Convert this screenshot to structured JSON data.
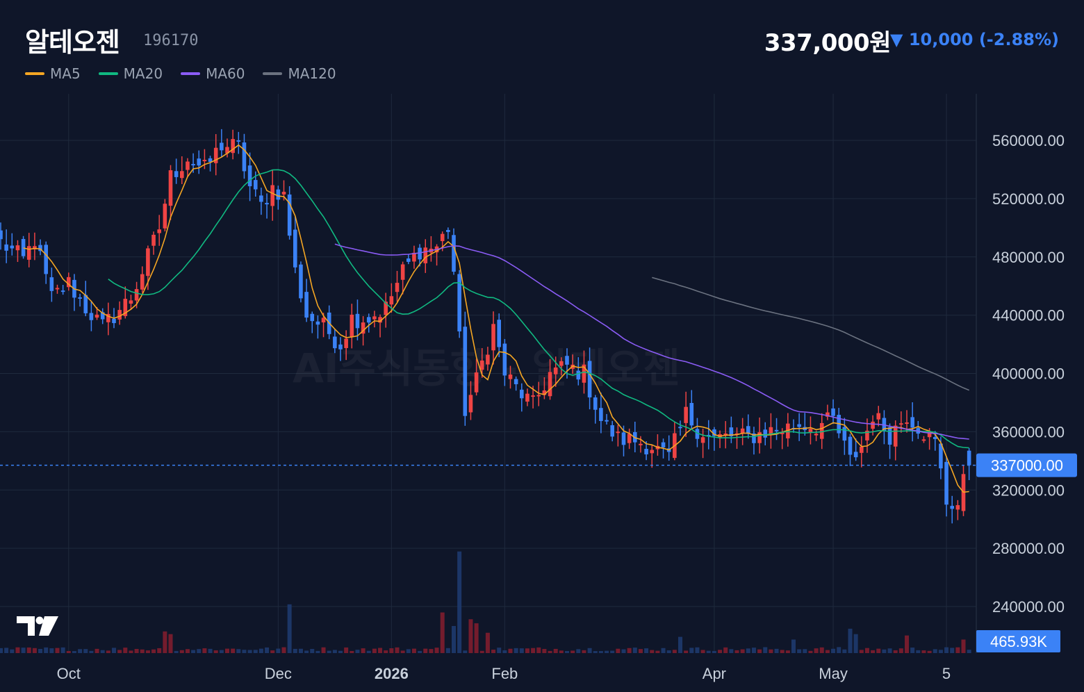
{
  "header": {
    "title": "알테오젠",
    "code": "196170",
    "price": "337,000원",
    "change": "▼ 10,000 (-2.88%)"
  },
  "colors": {
    "background": "#0f1629",
    "grid": "#1f2a3d",
    "up": "#ef4444",
    "down": "#3b82f6",
    "ma5": "#f5a623",
    "ma20": "#10b981",
    "ma60": "#8b5cf6",
    "ma120": "#6b7280",
    "price_tag": "#3b82f6"
  },
  "watermark": "AI주식동향 - 알테오젠",
  "last_price_tag": "337000.00",
  "volume_tag": "465.93K",
  "chart_data": {
    "type": "candlestick",
    "ma_legend": [
      {
        "name": "MA5",
        "color": "#f5a623"
      },
      {
        "name": "MA20",
        "color": "#10b981"
      },
      {
        "name": "MA60",
        "color": "#8b5cf6"
      },
      {
        "name": "MA120",
        "color": "#6b7280"
      }
    ],
    "y_ticks": [
      "560000.00",
      "520000.00",
      "480000.00",
      "440000.00",
      "400000.00",
      "360000.00",
      "320000.00",
      "280000.00",
      "240000.00"
    ],
    "y_tick_values": [
      560000,
      520000,
      480000,
      440000,
      400000,
      360000,
      320000,
      280000,
      240000
    ],
    "ylim": [
      210000,
      590000
    ],
    "x_ticks": [
      {
        "label": "Oct",
        "bar": 12,
        "bold": false
      },
      {
        "label": "Dec",
        "bar": 49,
        "bold": false
      },
      {
        "label": "2026",
        "bar": 69,
        "bold": true
      },
      {
        "label": "Feb",
        "bar": 89,
        "bold": false
      },
      {
        "label": "Apr",
        "bar": 126,
        "bold": false
      },
      {
        "label": "May",
        "bar": 147,
        "bold": false
      },
      {
        "label": "5",
        "bar": 167,
        "bold": false
      }
    ],
    "bar_count": 172,
    "anchors": [
      [
        0,
        490000
      ],
      [
        4,
        478000
      ],
      [
        6,
        492000
      ],
      [
        9,
        452000
      ],
      [
        12,
        462000
      ],
      [
        15,
        445000
      ],
      [
        18,
        432000
      ],
      [
        20,
        440000
      ],
      [
        23,
        452000
      ],
      [
        25,
        470000
      ],
      [
        28,
        500000
      ],
      [
        30,
        535000
      ],
      [
        33,
        548000
      ],
      [
        36,
        540000
      ],
      [
        39,
        557000
      ],
      [
        42,
        555000
      ],
      [
        44,
        528000
      ],
      [
        46,
        515000
      ],
      [
        48,
        528000
      ],
      [
        50,
        522000
      ],
      [
        52,
        470000
      ],
      [
        54,
        440000
      ],
      [
        57,
        432000
      ],
      [
        60,
        420000
      ],
      [
        62,
        438000
      ],
      [
        65,
        438000
      ],
      [
        68,
        445000
      ],
      [
        71,
        470000
      ],
      [
        74,
        485000
      ],
      [
        77,
        487000
      ],
      [
        79,
        500000
      ],
      [
        80,
        470000
      ],
      [
        82,
        375000
      ],
      [
        84,
        395000
      ],
      [
        87,
        432000
      ],
      [
        89,
        400000
      ],
      [
        91,
        390000
      ],
      [
        94,
        378000
      ],
      [
        97,
        400000
      ],
      [
        100,
        405000
      ],
      [
        103,
        400000
      ],
      [
        106,
        368000
      ],
      [
        109,
        355000
      ],
      [
        112,
        354000
      ],
      [
        115,
        350000
      ],
      [
        118,
        342000
      ],
      [
        121,
        372000
      ],
      [
        123,
        362000
      ],
      [
        126,
        355000
      ],
      [
        129,
        357000
      ],
      [
        132,
        356000
      ],
      [
        135,
        360000
      ],
      [
        138,
        362000
      ],
      [
        141,
        365000
      ],
      [
        144,
        364000
      ],
      [
        147,
        368000
      ],
      [
        150,
        340000
      ],
      [
        152,
        350000
      ],
      [
        154,
        372000
      ],
      [
        157,
        358000
      ],
      [
        160,
        372000
      ],
      [
        163,
        360000
      ],
      [
        165,
        352000
      ],
      [
        167,
        312000
      ],
      [
        169,
        310000
      ],
      [
        171,
        340000
      ]
    ],
    "volume_bars": [
      [
        81,
        0.75
      ],
      [
        51,
        0.36
      ],
      [
        78,
        0.3
      ],
      [
        83,
        0.25
      ],
      [
        84,
        0.22
      ],
      [
        80,
        0.2
      ],
      [
        86,
        0.15
      ],
      [
        150,
        0.18
      ],
      [
        151,
        0.14
      ],
      [
        29,
        0.16
      ],
      [
        30,
        0.14
      ],
      [
        120,
        0.12
      ],
      [
        140,
        0.1
      ],
      [
        160,
        0.13
      ],
      [
        170,
        0.1
      ]
    ],
    "ma120_start_bar": 115
  }
}
